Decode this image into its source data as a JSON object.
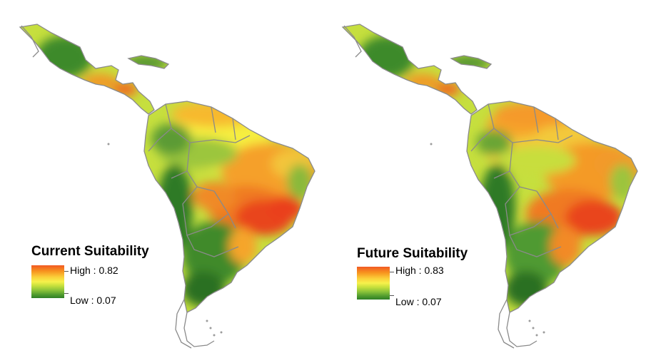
{
  "panels": [
    {
      "legend_title": "Current Suitability",
      "high_label": "High : 0.82",
      "low_label": "Low : 0.07",
      "high_value": 0.82,
      "low_value": 0.07
    },
    {
      "legend_title": "Future Suitability",
      "high_label": "High : 0.83",
      "low_label": "Low : 0.07",
      "high_value": 0.83,
      "low_value": 0.07
    }
  ],
  "colors": {
    "high": "#f15a24",
    "mid_high": "#f7931e",
    "mid": "#f6f14b",
    "mid_low": "#8cc43a",
    "low": "#2f7f26",
    "border": "#808080"
  }
}
